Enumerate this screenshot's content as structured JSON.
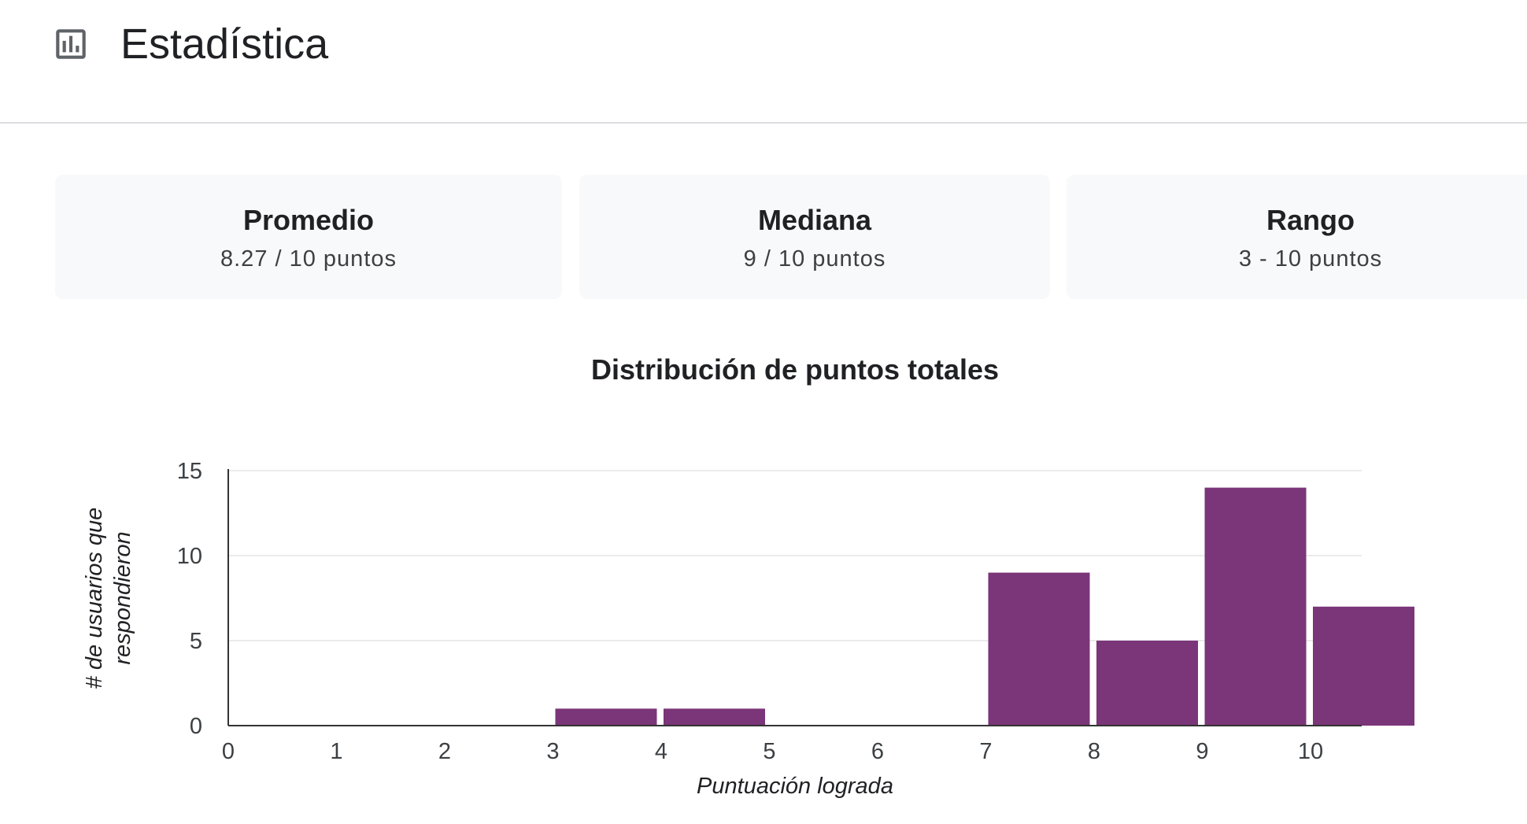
{
  "header": {
    "icon": "bar-chart-icon",
    "title": "Estadística"
  },
  "stats": [
    {
      "label": "Promedio",
      "value": "8.27 / 10 puntos"
    },
    {
      "label": "Mediana",
      "value": "9 / 10 puntos"
    },
    {
      "label": "Rango",
      "value": "3 - 10 puntos"
    }
  ],
  "chart_data": {
    "type": "bar",
    "title": "Distribución de puntos totales",
    "xlabel": "Puntuación lograda",
    "ylabel_lines": [
      "# de usuarios que",
      "respondieron"
    ],
    "categories": [
      "0",
      "1",
      "2",
      "3",
      "4",
      "5",
      "6",
      "7",
      "8",
      "9",
      "10"
    ],
    "values": [
      0,
      0,
      0,
      1,
      1,
      0,
      0,
      9,
      5,
      14,
      7
    ],
    "ylim": [
      0,
      15
    ],
    "yticks": [
      "0",
      "5",
      "10",
      "15"
    ],
    "grid": true,
    "bar_color": "#7b3579",
    "grid_color": "#ebebeb",
    "axis_color": "#333333"
  }
}
